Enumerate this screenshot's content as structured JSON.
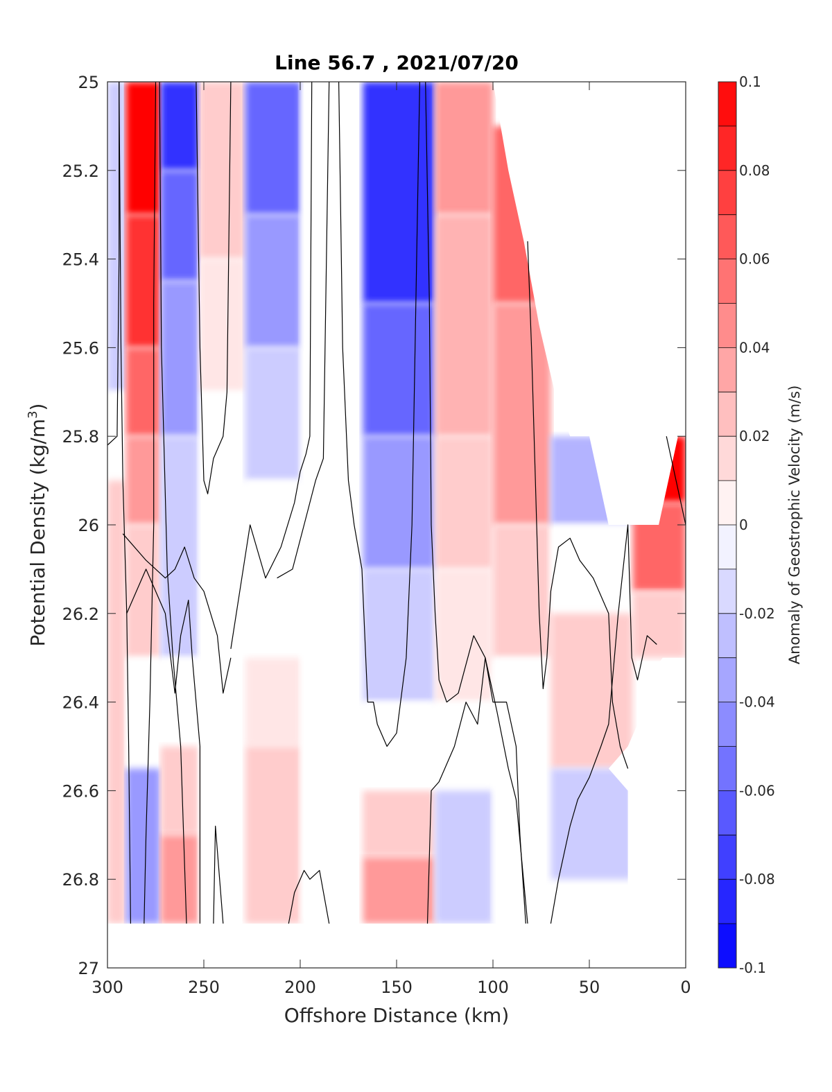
{
  "chart_data": {
    "type": "heatmap",
    "title": "Line 56.7 , 2021/07/20",
    "xlabel": "Offshore Distance (km)",
    "ylabel_main": "Potential Density (kg/m",
    "ylabel_sup": "3",
    "ylabel_close": ")",
    "colorbar_label": "Anomaly of Geostrophic Velocity (m/s)",
    "xlim": [
      300,
      0
    ],
    "ylim": [
      25,
      27
    ],
    "x_reversed": true,
    "y_reversed": true,
    "x_ticks": [
      300,
      250,
      200,
      150,
      100,
      50,
      0
    ],
    "x_tick_labels": [
      "300",
      "250",
      "200",
      "150",
      "100",
      "50",
      "0"
    ],
    "y_ticks": [
      25,
      25.2,
      25.4,
      25.6,
      25.8,
      26,
      26.2,
      26.4,
      26.6,
      26.8,
      27
    ],
    "y_tick_labels": [
      "25",
      "25.2",
      "25.4",
      "25.6",
      "25.8",
      "26",
      "26.2",
      "26.4",
      "26.6",
      "26.8",
      "27"
    ],
    "colorbar_range": [
      -0.1,
      0.1
    ],
    "colorbar_ticks": [
      0.1,
      0.08,
      0.06,
      0.04,
      0.02,
      0,
      -0.02,
      -0.04,
      -0.06,
      -0.08,
      -0.1
    ],
    "colorbar_tick_labels": [
      "0.1",
      "0.08",
      "0.06",
      "0.04",
      "0.02",
      "0",
      "-0.02",
      "-0.04",
      "-0.06",
      "-0.08",
      "-0.1"
    ],
    "colormap": "blue-white-red",
    "color_positive": "#ff0000",
    "color_negative": "#0000ff",
    "color_zero": "#ffffff",
    "contour_color": "#000000",
    "grid": false,
    "columns": [
      {
        "x": 298,
        "values": [
          {
            "top": 25.0,
            "bottom": 25.7,
            "v": -0.02
          },
          {
            "top": 25.7,
            "bottom": 25.9,
            "v": 0.0
          },
          {
            "top": 25.9,
            "bottom": 26.9,
            "v": 0.02
          }
        ]
      },
      {
        "x": 283,
        "values": [
          {
            "top": 25.0,
            "bottom": 25.3,
            "v": 0.1
          },
          {
            "top": 25.3,
            "bottom": 25.6,
            "v": 0.08
          },
          {
            "top": 25.6,
            "bottom": 25.8,
            "v": 0.06
          },
          {
            "top": 25.8,
            "bottom": 26.0,
            "v": 0.04
          },
          {
            "top": 26.0,
            "bottom": 26.3,
            "v": 0.02
          },
          {
            "top": 26.3,
            "bottom": 26.55,
            "v": 0.0
          },
          {
            "top": 26.55,
            "bottom": 26.9,
            "v": -0.04
          }
        ]
      },
      {
        "x": 262,
        "values": [
          {
            "top": 25.0,
            "bottom": 25.2,
            "v": -0.08
          },
          {
            "top": 25.2,
            "bottom": 25.45,
            "v": -0.06
          },
          {
            "top": 25.45,
            "bottom": 25.8,
            "v": -0.04
          },
          {
            "top": 25.8,
            "bottom": 26.3,
            "v": -0.02
          },
          {
            "top": 26.3,
            "bottom": 26.5,
            "v": 0.0
          },
          {
            "top": 26.5,
            "bottom": 26.7,
            "v": 0.02
          },
          {
            "top": 26.7,
            "bottom": 26.9,
            "v": 0.04
          }
        ]
      },
      {
        "x": 243,
        "values": [
          {
            "top": 25.0,
            "bottom": 25.4,
            "v": 0.02
          },
          {
            "top": 25.4,
            "bottom": 25.7,
            "v": 0.01
          },
          {
            "top": 25.7,
            "bottom": 26.9,
            "v": 0.0
          }
        ]
      },
      {
        "x": 214,
        "values": [
          {
            "top": 25.0,
            "bottom": 25.3,
            "v": -0.06
          },
          {
            "top": 25.3,
            "bottom": 25.6,
            "v": -0.04
          },
          {
            "top": 25.6,
            "bottom": 25.9,
            "v": -0.02
          },
          {
            "top": 25.9,
            "bottom": 26.3,
            "v": 0.0
          },
          {
            "top": 26.3,
            "bottom": 26.5,
            "v": 0.01
          },
          {
            "top": 26.5,
            "bottom": 26.9,
            "v": 0.02
          }
        ]
      },
      {
        "x": 185,
        "values": [
          {
            "top": 25.0,
            "bottom": 26.9,
            "v": 0.0
          }
        ]
      },
      {
        "x": 150,
        "values": [
          {
            "top": 25.0,
            "bottom": 25.5,
            "v": -0.08
          },
          {
            "top": 25.5,
            "bottom": 25.8,
            "v": -0.06
          },
          {
            "top": 25.8,
            "bottom": 26.1,
            "v": -0.04
          },
          {
            "top": 26.1,
            "bottom": 26.4,
            "v": -0.02
          },
          {
            "top": 26.4,
            "bottom": 26.6,
            "v": 0.0
          },
          {
            "top": 26.6,
            "bottom": 26.75,
            "v": 0.02
          },
          {
            "top": 26.75,
            "bottom": 26.9,
            "v": 0.04
          }
        ]
      },
      {
        "x": 110,
        "values": [
          {
            "top": 25.0,
            "bottom": 25.3,
            "v": 0.04
          },
          {
            "top": 25.3,
            "bottom": 25.8,
            "v": 0.03
          },
          {
            "top": 25.8,
            "bottom": 26.1,
            "v": 0.02
          },
          {
            "top": 26.1,
            "bottom": 26.4,
            "v": 0.01
          },
          {
            "top": 26.4,
            "bottom": 26.6,
            "v": 0.0
          },
          {
            "top": 26.6,
            "bottom": 26.9,
            "v": -0.02
          }
        ]
      },
      {
        "x": 90,
        "values": [
          {
            "top": 25.1,
            "bottom": 25.5,
            "v": 0.06
          },
          {
            "top": 25.5,
            "bottom": 26.0,
            "v": 0.04
          },
          {
            "top": 26.0,
            "bottom": 26.3,
            "v": 0.02
          },
          {
            "top": 26.3,
            "bottom": 26.9,
            "v": 0.0
          }
        ]
      },
      {
        "x": 50,
        "values": [
          {
            "top": 25.8,
            "bottom": 26.0,
            "v": -0.03
          },
          {
            "top": 26.0,
            "bottom": 26.2,
            "v": 0.0
          },
          {
            "top": 26.2,
            "bottom": 26.55,
            "v": 0.02
          },
          {
            "top": 26.55,
            "bottom": 26.8,
            "v": -0.02
          }
        ]
      },
      {
        "x": 5,
        "values": [
          {
            "top": 25.8,
            "bottom": 25.95,
            "v": 0.1
          },
          {
            "top": 25.95,
            "bottom": 26.15,
            "v": 0.06
          },
          {
            "top": 26.15,
            "bottom": 26.3,
            "v": 0.02
          }
        ]
      }
    ]
  }
}
